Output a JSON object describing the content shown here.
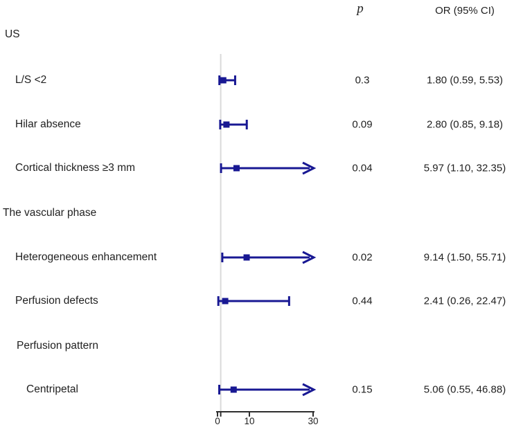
{
  "header": {
    "p": "p",
    "or": "OR (95% CI)"
  },
  "chart_data": {
    "type": "forest",
    "title": "",
    "x_axis": {
      "min": 0,
      "max": 30,
      "ticks": [
        {
          "v": 0,
          "label": "0"
        },
        {
          "v": 1,
          "label": ""
        },
        {
          "v": 10,
          "label": "10"
        },
        {
          "v": 30,
          "label": "30"
        }
      ],
      "refline_at": 1
    },
    "rows": [
      {
        "kind": "section",
        "label": "US",
        "indent": 0
      },
      {
        "kind": "item",
        "label": "L/S <2",
        "indent": 1,
        "or": 1.8,
        "ci_low": 0.59,
        "ci_high": 5.53,
        "p": "0.3",
        "or_text": "1.80 (0.59, 5.53)"
      },
      {
        "kind": "item",
        "label": "Hilar absence",
        "indent": 1,
        "or": 2.8,
        "ci_low": 0.85,
        "ci_high": 9.18,
        "p": "0.09",
        "or_text": "2.80 (0.85, 9.18)"
      },
      {
        "kind": "item",
        "label": "Cortical thickness ≥3 mm",
        "indent": 1,
        "or": 5.97,
        "ci_low": 1.1,
        "ci_high": 32.35,
        "p": "0.04",
        "or_text": "5.97 (1.10, 32.35)"
      },
      {
        "kind": "section",
        "label": "The vascular phase",
        "indent": 0
      },
      {
        "kind": "item",
        "label": "Heterogeneous enhancement",
        "indent": 1,
        "or": 9.14,
        "ci_low": 1.5,
        "ci_high": 55.71,
        "p": "0.02",
        "or_text": "9.14 (1.50, 55.71)"
      },
      {
        "kind": "item",
        "label": "Perfusion defects",
        "indent": 1,
        "or": 2.41,
        "ci_low": 0.26,
        "ci_high": 22.47,
        "p": "0.44",
        "or_text": "2.41 (0.26, 22.47)"
      },
      {
        "kind": "section",
        "label": "Perfusion pattern",
        "indent": 1
      },
      {
        "kind": "item",
        "label": "Centripetal",
        "indent": 2,
        "or": 5.06,
        "ci_low": 0.55,
        "ci_high": 46.88,
        "p": "0.15",
        "or_text": "5.06 (0.55, 46.88)"
      }
    ],
    "colors": {
      "marker": "#181893",
      "refline": "#d9d9d9",
      "axis": "#2e2e2e",
      "text": "#1f1f1f"
    }
  }
}
